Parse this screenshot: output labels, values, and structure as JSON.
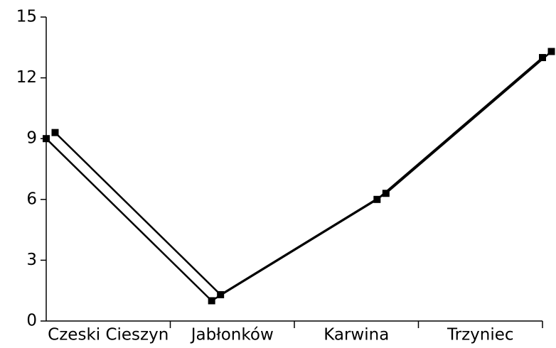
{
  "chart_data": {
    "type": "line",
    "categories": [
      "Czeski Cieszyn",
      "Jabłonków",
      "Karwina",
      "Trzyniec"
    ],
    "series": [
      {
        "color": "#000000",
        "values": [
          9,
          1,
          6,
          13
        ]
      },
      {
        "color": "#000000",
        "values": [
          9.3,
          1.3,
          6.3,
          13.3
        ]
      }
    ],
    "ylim": [
      0,
      15
    ],
    "yticks": [
      0,
      3,
      6,
      9,
      12,
      15
    ],
    "grid": false
  }
}
